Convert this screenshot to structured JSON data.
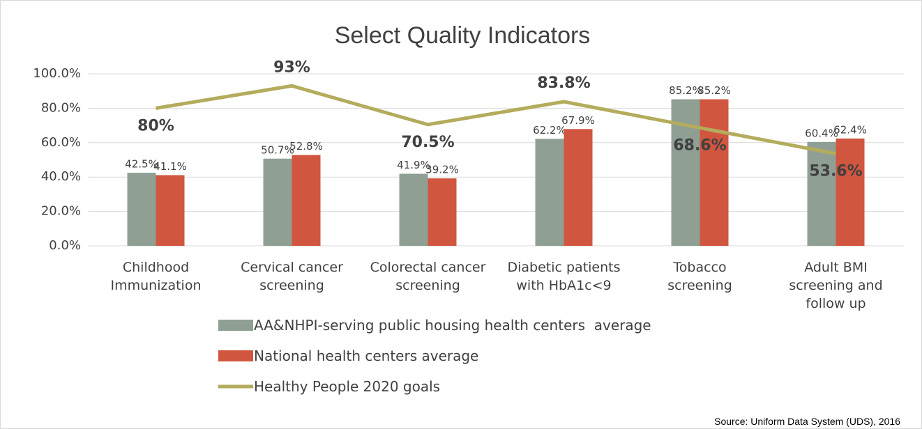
{
  "chart_data": {
    "type": "bar",
    "title": "Select Quality Indicators",
    "source": "Source: Uniform Data System (UDS), 2016",
    "categories": [
      "Childhood Immunization",
      "Cervical cancer screening",
      "Colorectal cancer screening",
      "Diabetic patients with HbA1c<9",
      "Tobacco screening",
      "Adult BMI screening and follow up"
    ],
    "series": [
      {
        "name": "AA&NHPI-serving public housing health centers  average",
        "type": "bar",
        "color": "#8f9f94",
        "values": [
          42.5,
          50.7,
          41.9,
          62.2,
          85.2,
          60.4
        ],
        "value_labels": [
          "42.5%",
          "50.7%",
          "41.9%",
          "62.2%",
          "85.2%",
          "60.4%"
        ]
      },
      {
        "name": "National health centers average",
        "type": "bar",
        "color": "#d0563f",
        "values": [
          41.1,
          52.8,
          39.2,
          67.9,
          85.2,
          62.4
        ],
        "value_labels": [
          "41.1%",
          "52.8%",
          "39.2%",
          "67.9%",
          "85.2%",
          "62.4%"
        ]
      },
      {
        "name": "Healthy People 2020 goals",
        "type": "line",
        "color": "#b3ac5c",
        "values": [
          80,
          93,
          70.5,
          83.8,
          68.6,
          53.6
        ],
        "value_labels": [
          "80%",
          "93%",
          "70.5%",
          "83.8%",
          "68.6%",
          "53.6%"
        ]
      }
    ],
    "ylim": [
      0,
      100
    ],
    "yticks": [
      {
        "value": 0,
        "label": "0.0%"
      },
      {
        "value": 20,
        "label": "20.0%"
      },
      {
        "value": 40,
        "label": "40.0%"
      },
      {
        "value": 60,
        "label": "60.0%"
      },
      {
        "value": 80,
        "label": "80.0%"
      },
      {
        "value": 100,
        "label": "100.0%"
      }
    ],
    "grid": true
  }
}
